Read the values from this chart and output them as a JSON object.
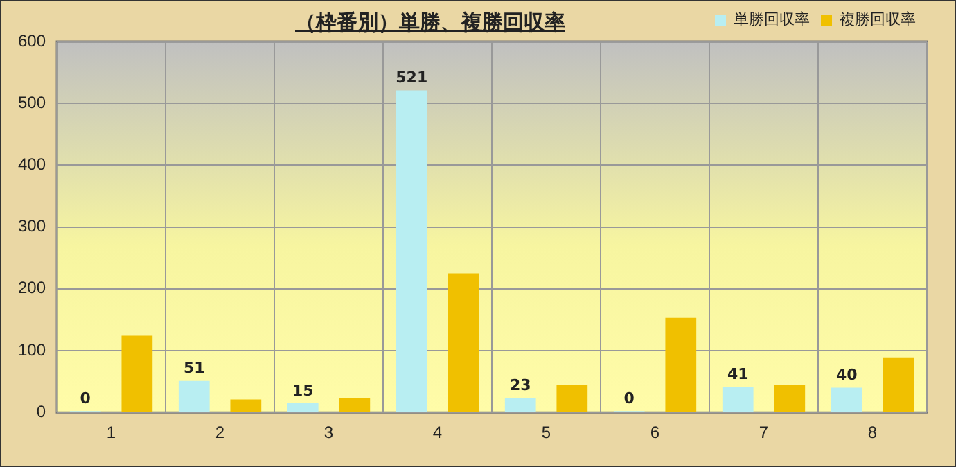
{
  "chart_data": {
    "type": "bar",
    "title": "（枠番別）単勝、複勝回収率",
    "categories": [
      "1",
      "2",
      "3",
      "4",
      "5",
      "6",
      "7",
      "8"
    ],
    "series": [
      {
        "name": "単勝回収率",
        "color": "#b8eef2",
        "values": [
          0,
          51,
          15,
          521,
          23,
          0,
          41,
          40
        ],
        "value_labels": [
          "0",
          "51",
          "15",
          "521",
          "23",
          "0",
          "41",
          "40"
        ]
      },
      {
        "name": "複勝回収率",
        "color": "#f0c000",
        "values": [
          124,
          21,
          23,
          225,
          44,
          153,
          45,
          89
        ]
      }
    ],
    "ylim": [
      0,
      600
    ],
    "yticks": [
      0,
      100,
      200,
      300,
      400,
      500,
      600
    ],
    "grid": true,
    "legend": "top right"
  }
}
